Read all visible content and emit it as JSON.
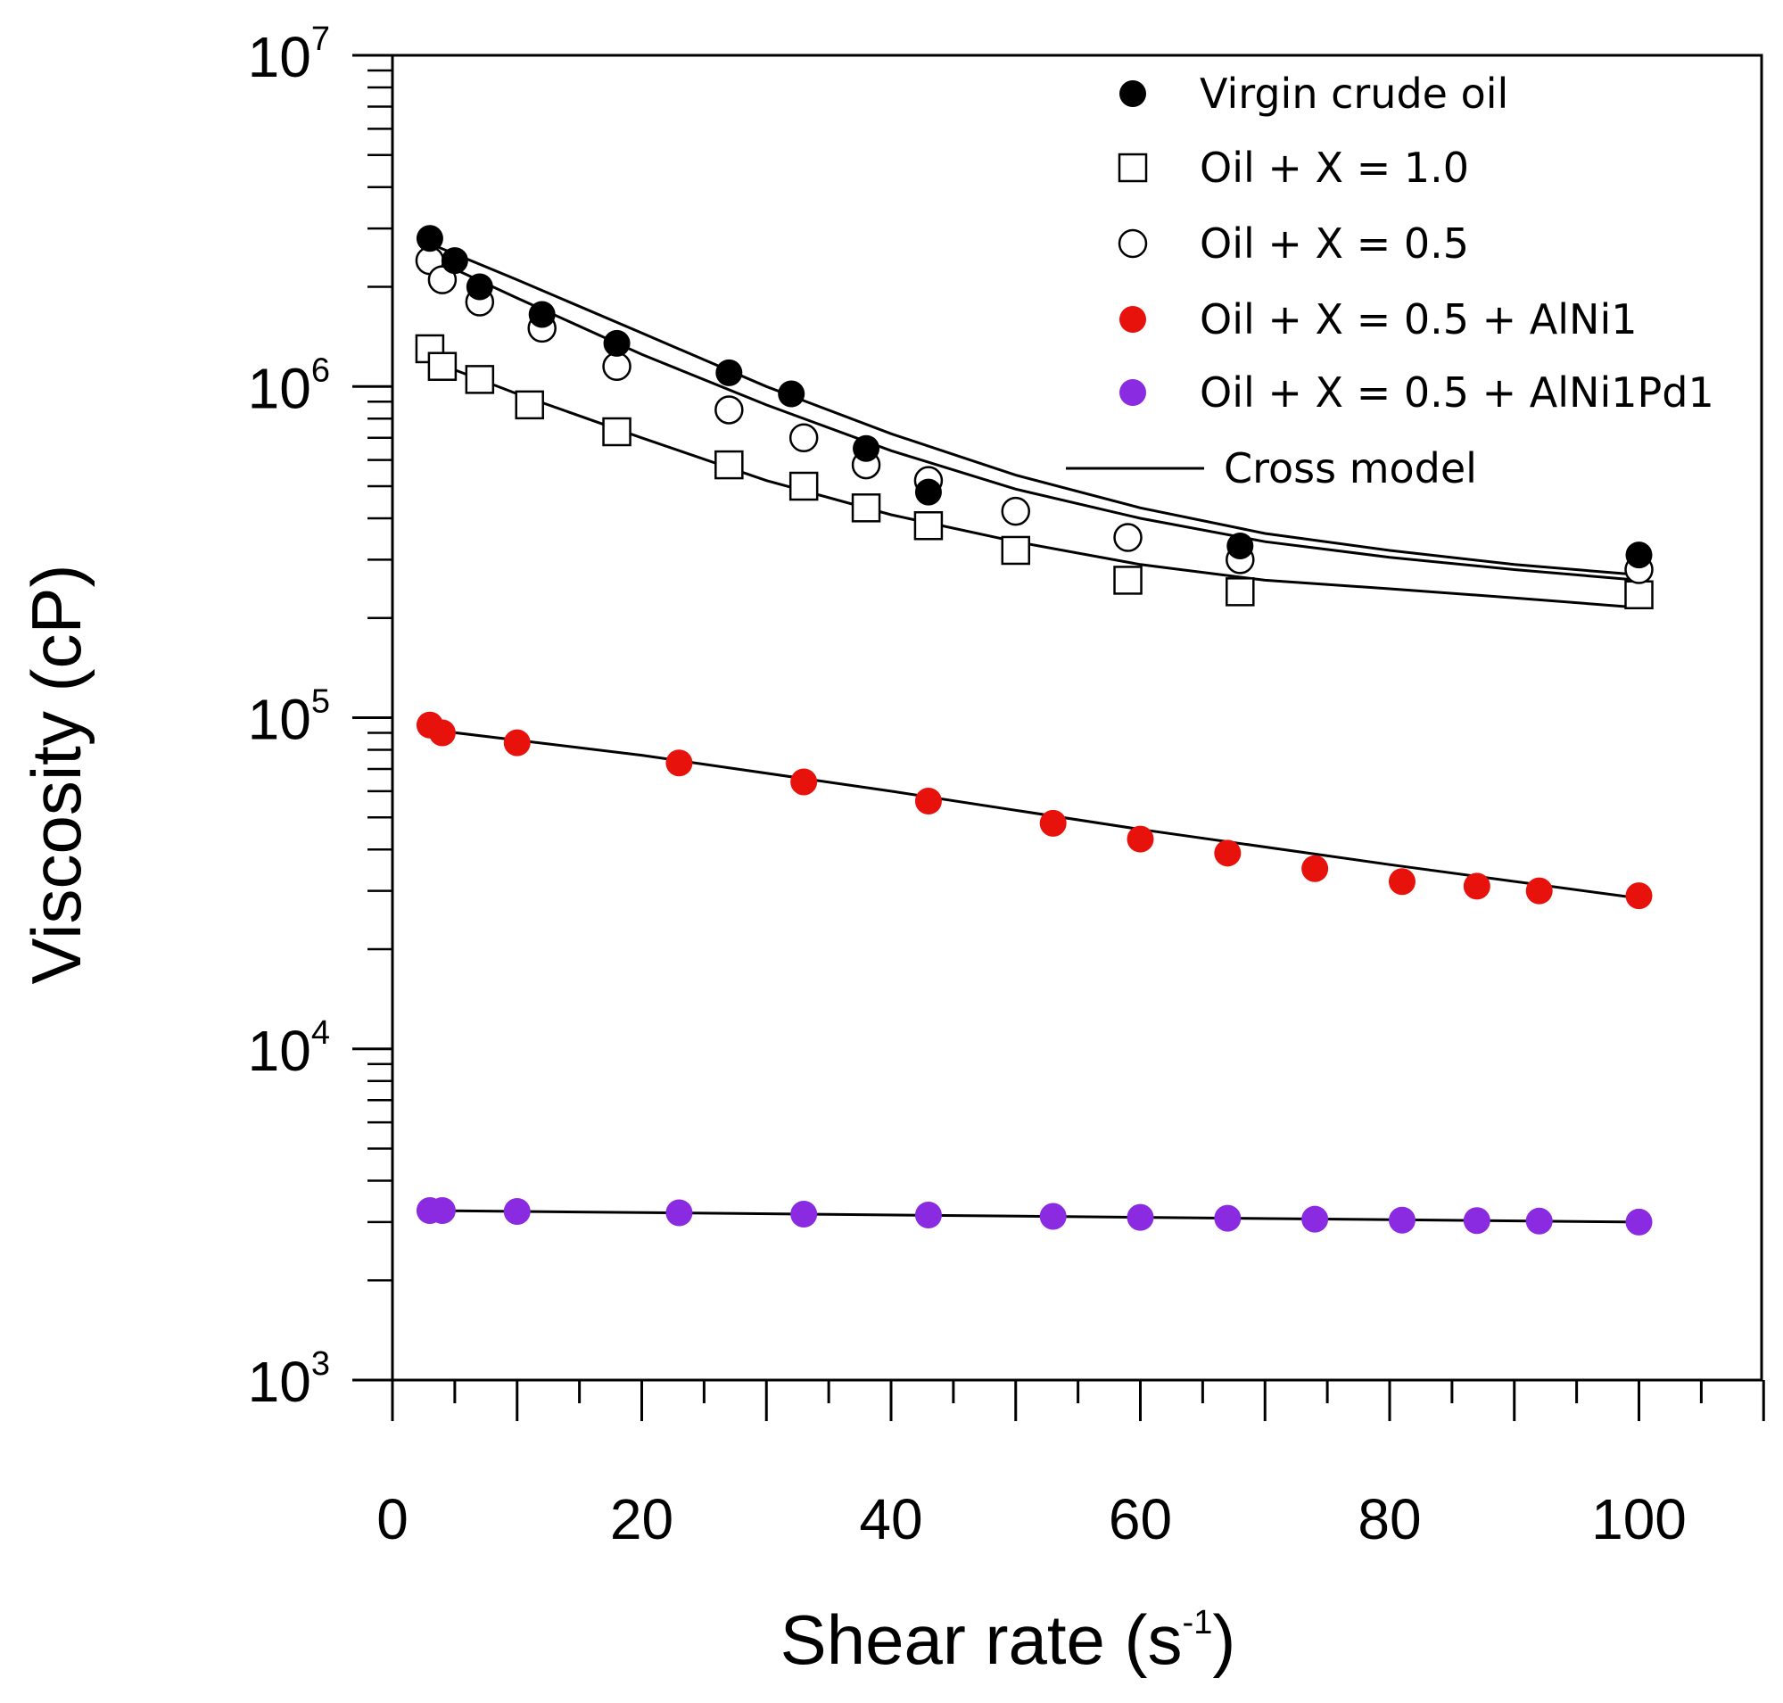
{
  "chart_data": {
    "type": "scatter",
    "xlabel": "Shear rate (s",
    "xlabel_superscript": "-1",
    "xlabel_suffix": ")",
    "ylabel": "Viscosity (cP)",
    "y_scale": "log",
    "xlim": [
      0,
      110
    ],
    "ylim": [
      1000,
      10000000
    ],
    "x_ticks": [
      0,
      20,
      40,
      60,
      80,
      100
    ],
    "x_tick_labels": [
      "0",
      "20",
      "40",
      "60",
      "80",
      "100"
    ],
    "y_ticks": [
      1000,
      10000,
      100000,
      1000000,
      10000000
    ],
    "y_tick_labels": [
      {
        "base": "10",
        "exp": "3"
      },
      {
        "base": "10",
        "exp": "4"
      },
      {
        "base": "10",
        "exp": "5"
      },
      {
        "base": "10",
        "exp": "6"
      },
      {
        "base": "10",
        "exp": "7"
      }
    ],
    "legend_position": "top-right",
    "series": [
      {
        "name": "Virgin crude oil",
        "marker": "filled-circle",
        "color": "#000000",
        "x": [
          3,
          5,
          7,
          12,
          18,
          27,
          32,
          38,
          43,
          68,
          100
        ],
        "y": [
          2800000,
          2400000,
          2000000,
          1650000,
          1350000,
          1100000,
          950000,
          650000,
          480000,
          330000,
          310000
        ],
        "fit": {
          "x": [
            3,
            10,
            20,
            30,
            40,
            50,
            60,
            70,
            80,
            90,
            100
          ],
          "y": [
            2700000,
            2100000,
            1450000,
            1000000,
            720000,
            540000,
            430000,
            360000,
            320000,
            290000,
            270000
          ]
        }
      },
      {
        "name": "Oil + X = 1.0",
        "marker": "open-square",
        "color": "#000000",
        "x": [
          3,
          4,
          7,
          11,
          18,
          27,
          33,
          38,
          43,
          50,
          59,
          68,
          100
        ],
        "y": [
          1300000,
          1150000,
          1050000,
          880000,
          730000,
          580000,
          500000,
          430000,
          380000,
          320000,
          260000,
          240000,
          235000
        ],
        "fit": {
          "x": [
            3,
            10,
            20,
            30,
            40,
            50,
            60,
            70,
            80,
            90,
            100
          ],
          "y": [
            1200000,
            950000,
            700000,
            520000,
            410000,
            340000,
            290000,
            260000,
            245000,
            230000,
            215000
          ]
        }
      },
      {
        "name": "Oil + X = 0.5",
        "marker": "open-circle",
        "color": "#000000",
        "x": [
          3,
          4,
          7,
          12,
          18,
          27,
          33,
          38,
          43,
          50,
          59,
          68,
          100
        ],
        "y": [
          2400000,
          2100000,
          1800000,
          1500000,
          1150000,
          850000,
          700000,
          580000,
          520000,
          420000,
          350000,
          300000,
          280000
        ],
        "fit": {
          "x": [
            3,
            10,
            20,
            30,
            40,
            50,
            60,
            70,
            80,
            90,
            100
          ],
          "y": [
            2450000,
            1850000,
            1250000,
            880000,
            640000,
            490000,
            400000,
            340000,
            305000,
            280000,
            260000
          ]
        }
      },
      {
        "name": "Oil + X = 0.5 + AlNi1",
        "marker": "filled-circle",
        "color": "#e8120c",
        "x": [
          3,
          4,
          10,
          23,
          33,
          43,
          53,
          60,
          67,
          74,
          81,
          87,
          92,
          100
        ],
        "y": [
          95000,
          90000,
          84000,
          73000,
          64000,
          56000,
          48000,
          43000,
          39000,
          35000,
          32000,
          31000,
          30000,
          29000
        ],
        "fit": {
          "x": [
            3,
            20,
            40,
            60,
            80,
            100
          ],
          "y": [
            92000,
            77000,
            60000,
            46000,
            36000,
            28500
          ]
        }
      },
      {
        "name": "Oil + X = 0.5 + AlNi1Pd1",
        "marker": "filled-circle",
        "color": "#8a2be2",
        "x": [
          3,
          4,
          10,
          23,
          33,
          43,
          53,
          60,
          67,
          74,
          81,
          87,
          92,
          100
        ],
        "y": [
          3250,
          3250,
          3230,
          3200,
          3170,
          3150,
          3120,
          3100,
          3080,
          3060,
          3040,
          3030,
          3020,
          3000
        ],
        "fit": {
          "x": [
            3,
            100
          ],
          "y": [
            3250,
            3000
          ]
        }
      }
    ],
    "fit_legend_label": "Cross model"
  }
}
